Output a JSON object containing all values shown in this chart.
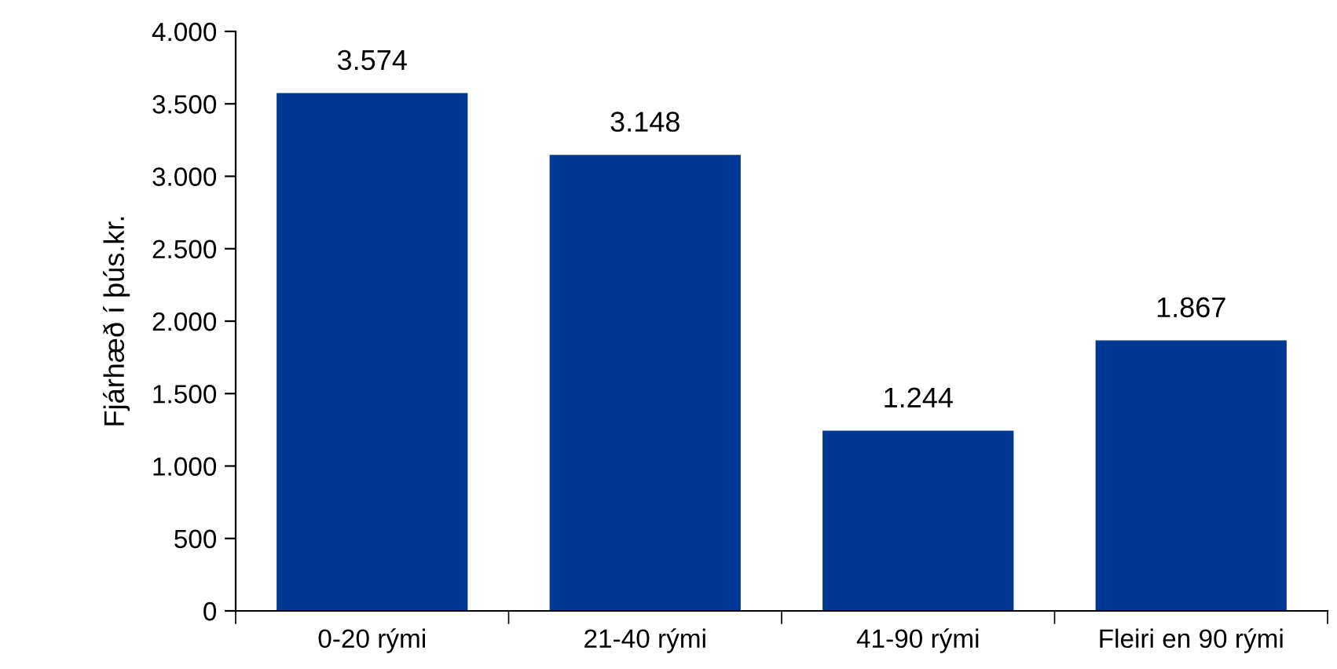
{
  "chart_data": {
    "type": "bar",
    "ylabel": "Fjárhæð í þús.kr.",
    "categories": [
      "0-20 rými",
      "21-40 rými",
      "41-90 rými",
      "Fleiri en 90 rými"
    ],
    "values": [
      3574,
      3148,
      1244,
      1867
    ],
    "value_labels": [
      "3.574",
      "3.148",
      "1.244",
      "1.867"
    ],
    "color": "#003893",
    "ylim": [
      0,
      4000
    ],
    "yticks": [
      {
        "value": 0,
        "label": "0"
      },
      {
        "value": 500,
        "label": "500"
      },
      {
        "value": 1000,
        "label": "1.000"
      },
      {
        "value": 1500,
        "label": "1.500"
      },
      {
        "value": 2000,
        "label": "2.000"
      },
      {
        "value": 2500,
        "label": "2.500"
      },
      {
        "value": 3000,
        "label": "3.000"
      },
      {
        "value": 3500,
        "label": "3.500"
      },
      {
        "value": 4000,
        "label": "4.000"
      }
    ],
    "grid": false
  }
}
